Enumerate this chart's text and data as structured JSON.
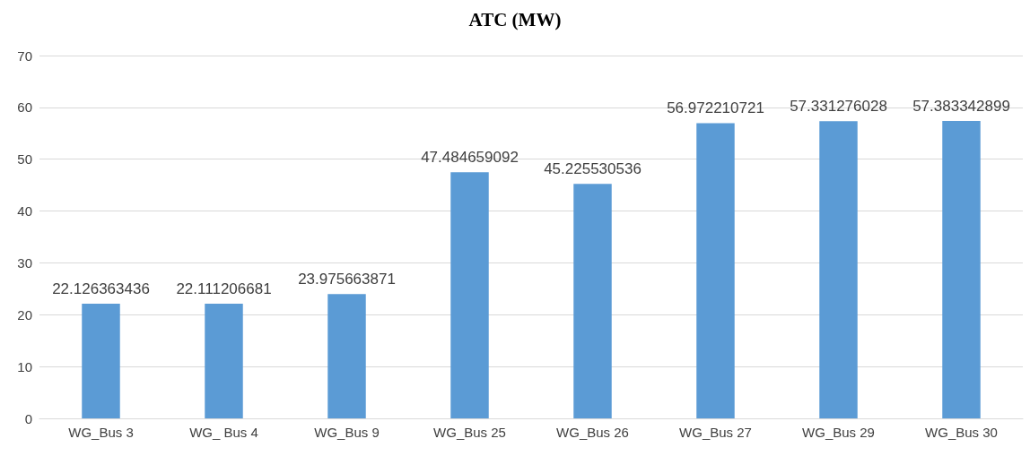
{
  "chart_data": {
    "type": "bar",
    "title": "ATC (MW)",
    "categories": [
      "WG_Bus 3",
      "WG_ Bus 4",
      "WG_Bus 9",
      "WG_Bus 25",
      "WG_Bus 26",
      "WG_Bus 27",
      "WG_Bus 29",
      "WG_Bus 30"
    ],
    "values": [
      22.126363436,
      22.111206681,
      23.975663871,
      47.484659092,
      45.225530536,
      56.972210721,
      57.331276028,
      57.383342899
    ],
    "color": "#5b9bd5",
    "ylim": [
      0,
      70
    ],
    "yticks": [
      0,
      10,
      20,
      30,
      40,
      50,
      60,
      70
    ],
    "grid": "y",
    "data_labels": true
  }
}
